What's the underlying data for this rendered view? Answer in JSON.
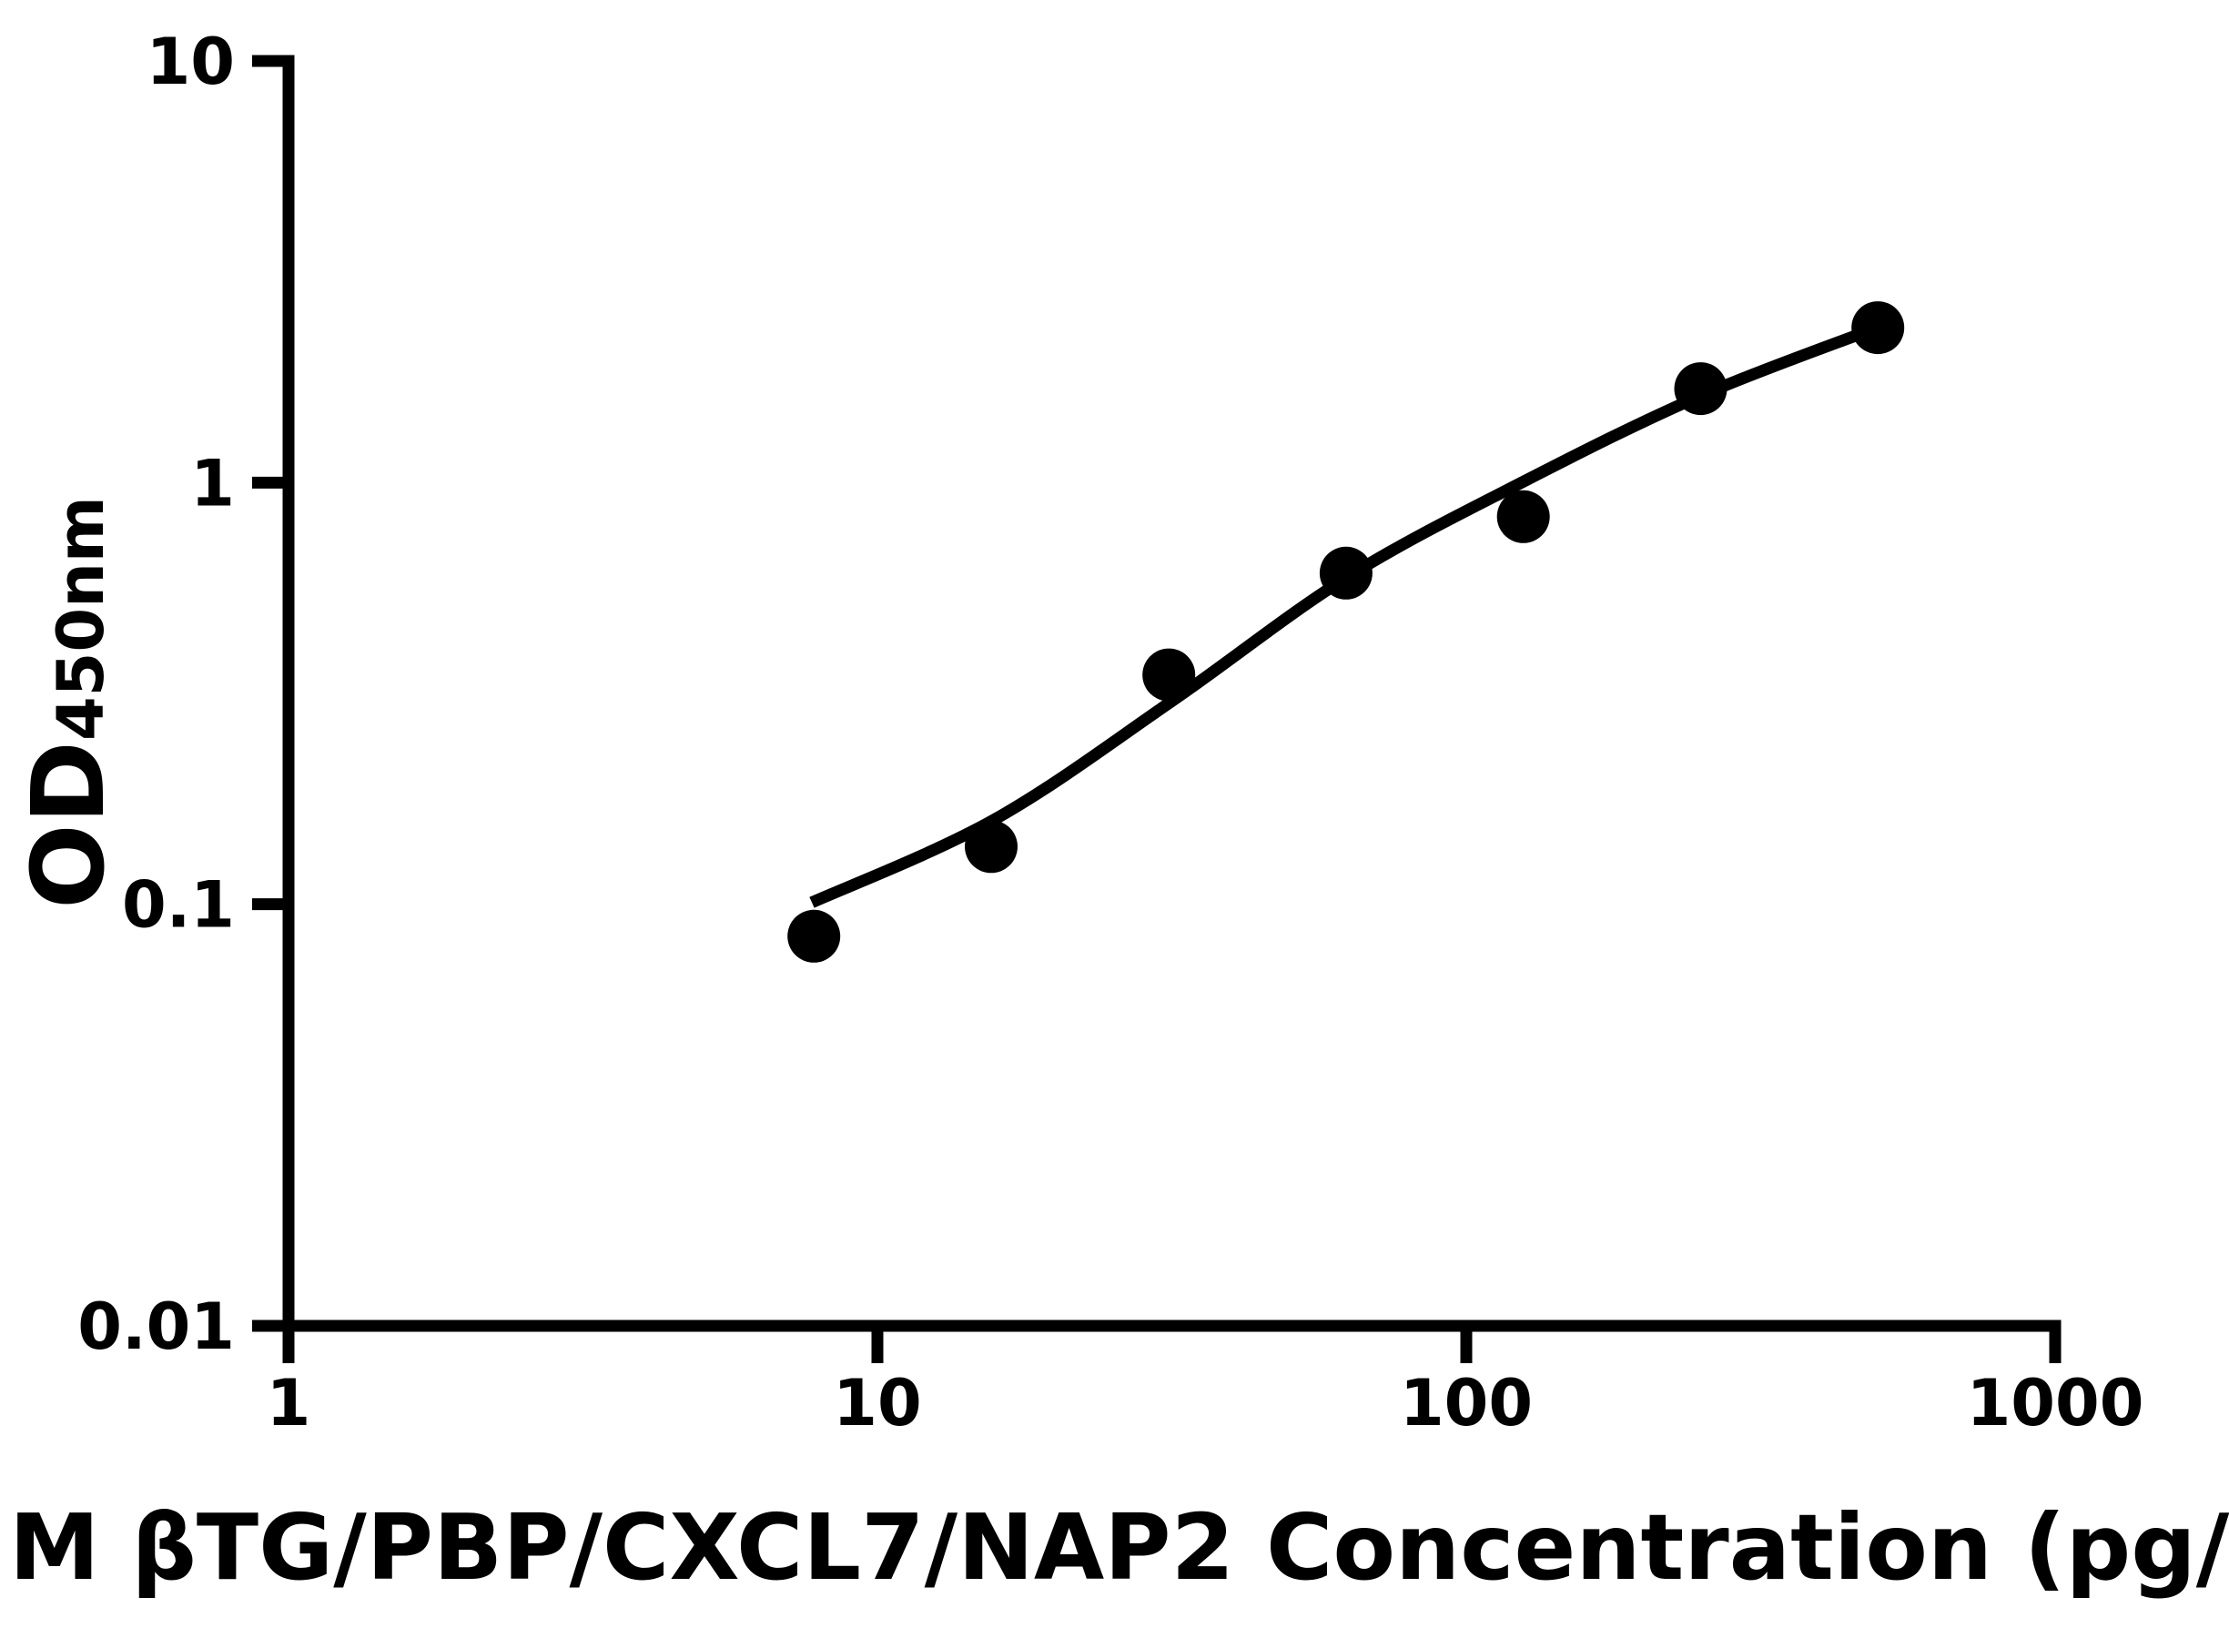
{
  "chart_data": {
    "type": "scatter",
    "title": "",
    "xlabel": "M βTG/PBP/CXCL7/NAP2 Concentration (pg/",
    "ylabel_main": "OD",
    "ylabel_sub": "450nm",
    "x_scale": "log",
    "y_scale": "log",
    "xlim": [
      1,
      1000
    ],
    "ylim": [
      0.01,
      10
    ],
    "grid": false,
    "legend": "none",
    "axis_color": "#000000",
    "marker_color": "#000000",
    "line_color": "#000000",
    "background_color": "#ffffff",
    "x_ticks": [
      {
        "label": "1",
        "value": 1
      },
      {
        "label": "10",
        "value": 10
      },
      {
        "label": "100",
        "value": 100
      },
      {
        "label": "1000",
        "value": 1000
      }
    ],
    "y_ticks": [
      {
        "label": "10",
        "value": 10
      },
      {
        "label": "1",
        "value": 1
      },
      {
        "label": "0.1",
        "value": 0.1
      },
      {
        "label": "0.01",
        "value": 0.01
      }
    ],
    "points": [
      {
        "x": 7.8,
        "y": 0.084
      },
      {
        "x": 15.6,
        "y": 0.137
      },
      {
        "x": 31.25,
        "y": 0.35
      },
      {
        "x": 62.5,
        "y": 0.61
      },
      {
        "x": 125,
        "y": 0.83
      },
      {
        "x": 250,
        "y": 1.67
      },
      {
        "x": 500,
        "y": 2.33
      }
    ],
    "fit_curve": [
      {
        "x": 7.74,
        "y": 0.101
      },
      {
        "x": 15.7,
        "y": 0.158
      },
      {
        "x": 31.4,
        "y": 0.301
      },
      {
        "x": 62.7,
        "y": 0.596
      },
      {
        "x": 125,
        "y": 1.005
      },
      {
        "x": 249,
        "y": 1.603
      },
      {
        "x": 497,
        "y": 2.327
      }
    ]
  }
}
